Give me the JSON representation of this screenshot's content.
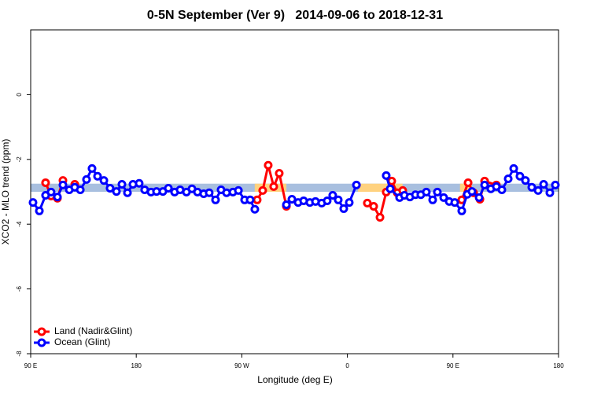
{
  "chart_data": {
    "type": "line",
    "title": "0-5N September (Ver 9)   2014-09-06 to 2018-12-31",
    "xlabel": "Longitude (deg E)",
    "ylabel": "XCO2 - MLO trend (ppm)",
    "xlim": [
      90,
      540
    ],
    "ylim": [
      -8,
      2
    ],
    "xticks": [
      {
        "value": 90,
        "label": "90 E"
      },
      180,
      {
        "value": 270,
        "label": "90 W"
      },
      {
        "value": 360,
        "label": "0"
      },
      {
        "value": 450,
        "label": "90 E"
      },
      {
        "value": 540,
        "label": "180"
      }
    ],
    "yticks": [
      -8,
      -6,
      -4,
      -2,
      0
    ],
    "legend": "bottom-left",
    "bands": [
      {
        "color": "#a8bfdf",
        "x": [
          90,
          540
        ],
        "y": [
          -3.0,
          -2.75
        ]
      },
      {
        "color": "#ffd27f",
        "x": [
          281,
          308
        ],
        "y": [
          -3.0,
          -2.75
        ]
      },
      {
        "color": "#ffd27f",
        "x": [
          369,
          407
        ],
        "y": [
          -3.0,
          -2.75
        ]
      },
      {
        "color": "#ffd27f",
        "x": [
          456,
          466
        ],
        "y": [
          -3.0,
          -2.75
        ]
      }
    ],
    "series": [
      {
        "name": "Land (Nadir&Glint)",
        "color": "#ff0000",
        "x": [
          102.7,
          107.4,
          112.8,
          117.5,
          122,
          127.6,
          200,
          283.1,
          287.8,
          292.5,
          297.2,
          301.9,
          308,
          340,
          377,
          382.4,
          387.8,
          393.1,
          397.8,
          402.5,
          407.2,
          430,
          457.5,
          462.9,
          467.6,
          473,
          477,
          487
        ],
        "values": [
          -2.72,
          -3.13,
          -3.2,
          -2.65,
          null,
          -2.77,
          null,
          -3.25,
          -2.96,
          -2.18,
          -2.84,
          -2.43,
          -3.45,
          null,
          -3.35,
          -3.45,
          -3.79,
          -3.01,
          -2.67,
          -3.03,
          -2.96,
          null,
          -3.25,
          -2.72,
          -3.03,
          -3.23,
          -2.67,
          -2.79
        ]
      },
      {
        "name": "Ocean (Glint)",
        "color": "#0000ff",
        "x": [
          92,
          97.4,
          102.7,
          107.4,
          112.8,
          117.5,
          122.9,
          127.6,
          132.3,
          137.6,
          142.3,
          147,
          152.4,
          157.7,
          163.1,
          167.8,
          172.5,
          177.2,
          182.5,
          187.2,
          192.6,
          197.3,
          202.7,
          207.4,
          212.7,
          217.4,
          222.8,
          227.5,
          232.2,
          237.5,
          242.2,
          247.6,
          252.3,
          257,
          262.4,
          267.1,
          272.4,
          277.1,
          281.1,
          295,
          308,
          312.7,
          318,
          322.7,
          328,
          332.8,
          338.1,
          342.8,
          347.5,
          352.2,
          356.9,
          361.6,
          367.7,
          380,
          393.1,
          396.5,
          404.5,
          408.6,
          413.3,
          418,
          422.6,
          427.3,
          432.7,
          436.7,
          442.1,
          446.8,
          451.5,
          457.5,
          462.2,
          466.2,
          472.3,
          477,
          482.3,
          487,
          491.7,
          497.1,
          501.8,
          507.1,
          511.8,
          517.2,
          522.6,
          527.3,
          532.6,
          537.3
        ],
        "values": [
          -3.33,
          -3.59,
          -3.11,
          -3.01,
          -3.16,
          -2.79,
          -2.94,
          -2.86,
          -2.94,
          -2.62,
          -2.28,
          -2.52,
          -2.65,
          -2.89,
          -2.99,
          -2.77,
          -3.03,
          -2.77,
          -2.74,
          -2.94,
          -3.01,
          -2.99,
          -2.99,
          -2.89,
          -3.01,
          -2.94,
          -3.01,
          -2.91,
          -3.01,
          -3.06,
          -3.03,
          -3.25,
          -2.94,
          -3.03,
          -3.01,
          -2.96,
          -3.25,
          -3.25,
          -3.54,
          null,
          -3.4,
          -3.23,
          -3.33,
          -3.28,
          -3.33,
          -3.3,
          -3.35,
          -3.28,
          -3.11,
          -3.25,
          -3.52,
          -3.33,
          -2.79,
          null,
          -2.5,
          -2.91,
          -3.18,
          -3.11,
          -3.16,
          -3.09,
          -3.09,
          -3.01,
          -3.25,
          -3.01,
          -3.18,
          -3.3,
          -3.33,
          -3.59,
          -3.08,
          -2.99,
          -3.18,
          -2.79,
          -2.91,
          -2.84,
          -2.94,
          -2.6,
          -2.28,
          -2.52,
          -2.65,
          -2.86,
          -2.96,
          -2.77,
          -3.03,
          -2.79
        ]
      }
    ]
  }
}
